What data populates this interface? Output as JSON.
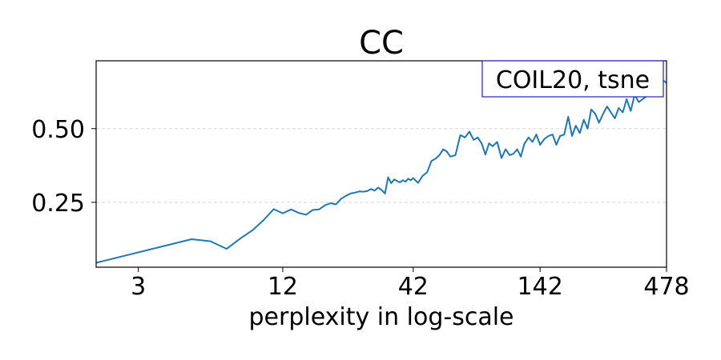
{
  "chart_data": {
    "type": "line",
    "title": "CC",
    "xlabel": "perplexity in log-scale",
    "ylabel": "",
    "x_scale": "log",
    "xlim": [
      2,
      478
    ],
    "ylim": [
      0.03,
      0.73
    ],
    "xticks": [
      3,
      12,
      42,
      142,
      478
    ],
    "xtick_labels": [
      "3",
      "12",
      "42",
      "142",
      "478"
    ],
    "yticks": [
      0.25,
      0.5
    ],
    "ytick_labels": [
      "0.25",
      "0.50"
    ],
    "grid": "horizontal dashed",
    "annotation": "COIL20, tsne",
    "series": [
      {
        "color": "#1f77b4",
        "x": [
          2,
          5,
          6,
          7,
          8,
          9,
          10,
          11,
          12,
          13,
          14,
          15,
          16,
          17,
          18,
          19,
          20,
          21,
          22,
          23,
          24,
          25,
          26,
          27,
          28,
          29,
          30,
          31,
          32,
          33,
          34,
          35,
          36,
          37,
          38,
          39,
          40,
          41,
          42,
          44,
          46,
          48,
          50,
          52,
          54,
          56,
          58,
          60,
          63,
          66,
          69,
          72,
          75,
          78,
          81,
          84,
          87,
          90,
          94,
          98,
          102,
          106,
          110,
          114,
          118,
          122,
          127,
          132,
          137,
          142,
          148,
          154,
          160,
          166,
          172,
          179,
          186,
          193,
          200,
          208,
          216,
          224,
          232,
          241,
          250,
          260,
          270,
          280,
          291,
          302,
          314,
          326,
          339,
          352,
          366,
          380,
          395,
          410,
          426,
          442,
          460,
          478
        ],
        "y": [
          0.045,
          0.125,
          0.118,
          0.092,
          0.128,
          0.156,
          0.19,
          0.227,
          0.213,
          0.226,
          0.214,
          0.208,
          0.224,
          0.226,
          0.24,
          0.247,
          0.243,
          0.262,
          0.272,
          0.28,
          0.283,
          0.287,
          0.286,
          0.288,
          0.295,
          0.29,
          0.3,
          0.292,
          0.28,
          0.335,
          0.315,
          0.328,
          0.322,
          0.318,
          0.325,
          0.32,
          0.33,
          0.325,
          0.332,
          0.316,
          0.34,
          0.352,
          0.39,
          0.398,
          0.41,
          0.43,
          0.422,
          0.405,
          0.41,
          0.478,
          0.47,
          0.49,
          0.462,
          0.47,
          0.45,
          0.412,
          0.45,
          0.44,
          0.455,
          0.4,
          0.43,
          0.41,
          0.415,
          0.43,
          0.405,
          0.448,
          0.47,
          0.455,
          0.48,
          0.445,
          0.465,
          0.475,
          0.48,
          0.445,
          0.475,
          0.48,
          0.54,
          0.475,
          0.51,
          0.485,
          0.53,
          0.5,
          0.565,
          0.55,
          0.52,
          0.55,
          0.575,
          0.555,
          0.535,
          0.57,
          0.555,
          0.6,
          0.56,
          0.615,
          0.59,
          0.6,
          0.61,
          0.62,
          0.635,
          0.64,
          0.665,
          0.655
        ]
      }
    ]
  }
}
